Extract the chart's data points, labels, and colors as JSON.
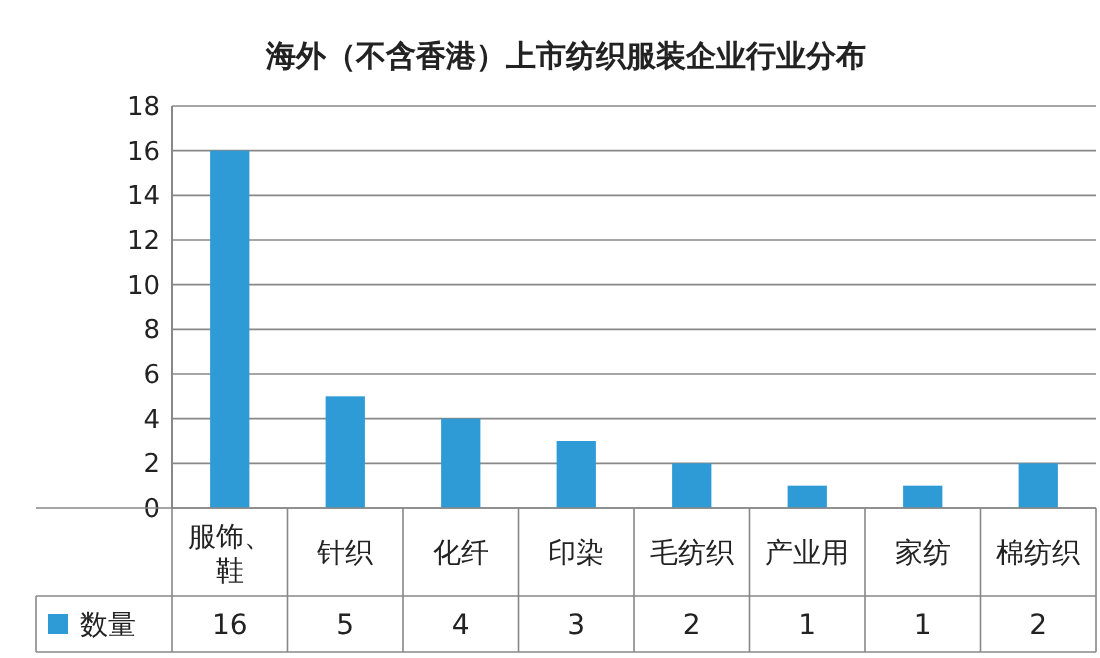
{
  "chart_data": {
    "type": "bar",
    "title": "海外（不含香港）上市纺织服装企业行业分布",
    "categories": [
      "服饰、鞋",
      "针织",
      "化纤",
      "印染",
      "毛纺织",
      "产业用",
      "家纺",
      "棉纺织"
    ],
    "series": [
      {
        "name": "数量",
        "color": "#2e9ad6",
        "values": [
          16,
          5,
          4,
          3,
          2,
          1,
          1,
          2
        ]
      }
    ],
    "ylim": [
      0,
      18
    ],
    "yticks": [
      0,
      2,
      4,
      6,
      8,
      10,
      12,
      14,
      16,
      18
    ],
    "grid": "y",
    "legend": "bottom",
    "data_labels": true
  }
}
